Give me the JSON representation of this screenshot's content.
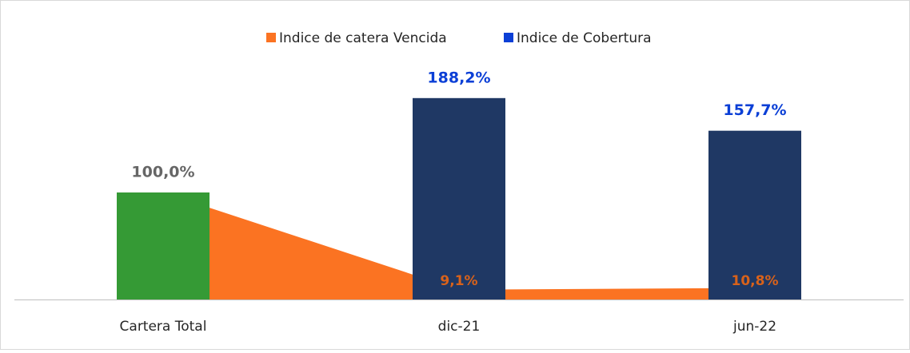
{
  "chart_data": {
    "type": "bar-area",
    "categories": [
      "Cartera Total",
      "dic-21",
      "jun-22"
    ],
    "series": [
      {
        "name": "Indice de catera Vencida",
        "type": "area",
        "color": "#fb7322",
        "label_color": "#d9621a",
        "values": [
          100,
          9.1,
          10.8
        ],
        "value_labels": [
          null,
          "9,1%",
          "10,8%"
        ]
      },
      {
        "name": "Indice de Cobertura",
        "type": "bar",
        "color": "#1f3864",
        "legend_color": "#0b3fd6",
        "label_color": "#0b3fd6",
        "point_colors": [
          "#359a35",
          "#1f3864",
          "#1f3864"
        ],
        "point_label_colors": [
          "#666666",
          "#0b3fd6",
          "#0b3fd6"
        ],
        "values": [
          100,
          188.2,
          157.7
        ],
        "value_labels": [
          "100,0%",
          "188,2%",
          "157,7%"
        ]
      }
    ],
    "ylim": [
      0,
      200
    ],
    "legend": "top"
  }
}
